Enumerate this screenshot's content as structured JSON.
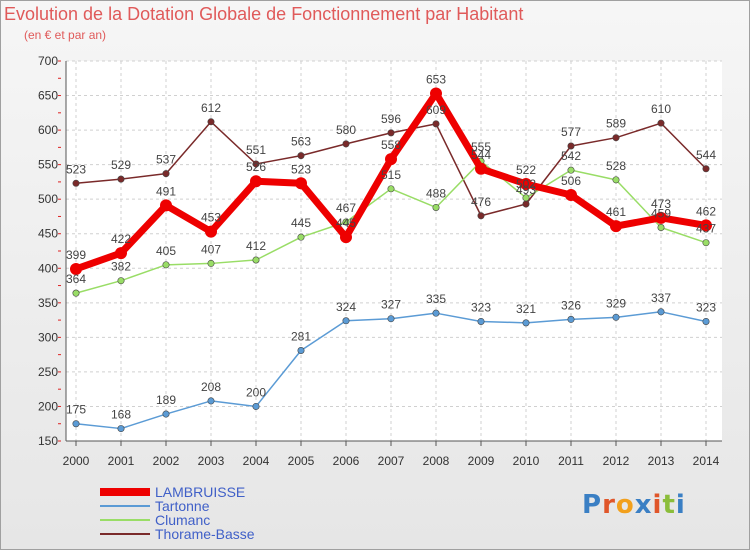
{
  "chart_data": {
    "type": "line",
    "title": "Evolution de la Dotation Globale de Fonctionnement par Habitant",
    "subtitle": "(en € et par an)",
    "xlabel": "",
    "ylabel": "",
    "ylim": [
      150,
      700
    ],
    "yticks": [
      150,
      200,
      250,
      300,
      350,
      400,
      450,
      500,
      550,
      600,
      650,
      700
    ],
    "categories": [
      "2000",
      "2001",
      "2002",
      "2003",
      "2004",
      "2005",
      "2006",
      "2007",
      "2008",
      "2009",
      "2010",
      "2011",
      "2012",
      "2013",
      "2014"
    ],
    "grid": true,
    "legend_position": "bottom-left",
    "series": [
      {
        "name": "LAMBRUISSE",
        "color": "#ee0000",
        "values": [
          399,
          422,
          491,
          453,
          526,
          523,
          445,
          558,
          653,
          544,
          522,
          506,
          461,
          473,
          462
        ],
        "labels": [
          "399",
          "422",
          "491",
          "453",
          "526",
          "523",
          "445",
          "558",
          "653",
          "544",
          "522",
          "506",
          "461",
          "473",
          "462"
        ]
      },
      {
        "name": "Tartonne",
        "color": "#5b9bd5",
        "values": [
          175,
          168,
          189,
          208,
          200,
          281,
          324,
          327,
          335,
          323,
          321,
          326,
          329,
          337,
          323
        ],
        "labels": [
          "175",
          "168",
          "189",
          "208",
          "200",
          "281",
          "324",
          "327",
          "335",
          "323",
          "321",
          "326",
          "329",
          "337",
          "323"
        ]
      },
      {
        "name": "Clumanc",
        "color": "#99dd66",
        "values": [
          364,
          382,
          405,
          407,
          412,
          445,
          467,
          515,
          488,
          555,
          502,
          542,
          528,
          459,
          437
        ],
        "labels": [
          "364",
          "382",
          "405",
          "407",
          "412",
          "445",
          "467",
          "515",
          "488",
          "555",
          "502",
          "542",
          "528",
          "459",
          "437"
        ]
      },
      {
        "name": "Thorame-Basse",
        "color": "#7a2a2a",
        "values": [
          523,
          529,
          537,
          612,
          551,
          563,
          580,
          596,
          609,
          476,
          493,
          577,
          589,
          610,
          544
        ],
        "labels": [
          "523",
          "529",
          "537",
          "612",
          "551",
          "563",
          "580",
          "596",
          "609",
          "476",
          "493",
          "577",
          "589",
          "610",
          "544"
        ]
      }
    ]
  },
  "logo": {
    "text": "Proxiti"
  }
}
